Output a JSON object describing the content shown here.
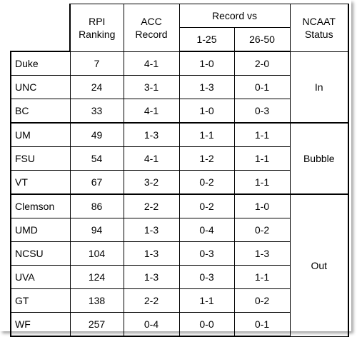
{
  "header": {
    "rpi": "RPI Ranking",
    "acc": "ACC Record",
    "record_vs": "Record vs",
    "range_1": "1-25",
    "range_2": "26-50",
    "status": "NCAAT Status"
  },
  "groups": [
    {
      "status": "In",
      "rows": [
        [
          "Duke",
          7,
          "4-1",
          "1-0",
          "2-0"
        ],
        [
          "UNC",
          24,
          "3-1",
          "1-3",
          "0-1"
        ],
        [
          "BC",
          33,
          "4-1",
          "1-0",
          "0-3"
        ]
      ]
    },
    {
      "status": "Bubble",
      "rows": [
        [
          "UM",
          49,
          "1-3",
          "1-1",
          "1-1"
        ],
        [
          "FSU",
          54,
          "4-1",
          "1-2",
          "1-1"
        ],
        [
          "VT",
          67,
          "3-2",
          "0-2",
          "1-1"
        ]
      ]
    },
    {
      "status": "Out",
      "rows": [
        [
          "Clemson",
          86,
          "2-2",
          "0-2",
          "1-0"
        ],
        [
          "UMD",
          94,
          "1-3",
          "0-4",
          "0-2"
        ],
        [
          "NCSU",
          104,
          "1-3",
          "0-3",
          "1-3"
        ],
        [
          "UVA",
          124,
          "1-3",
          "0-3",
          "1-1"
        ],
        [
          "GT",
          138,
          "2-2",
          "1-1",
          "0-2"
        ],
        [
          "WF",
          257,
          "0-4",
          "0-0",
          "0-1"
        ]
      ]
    }
  ]
}
